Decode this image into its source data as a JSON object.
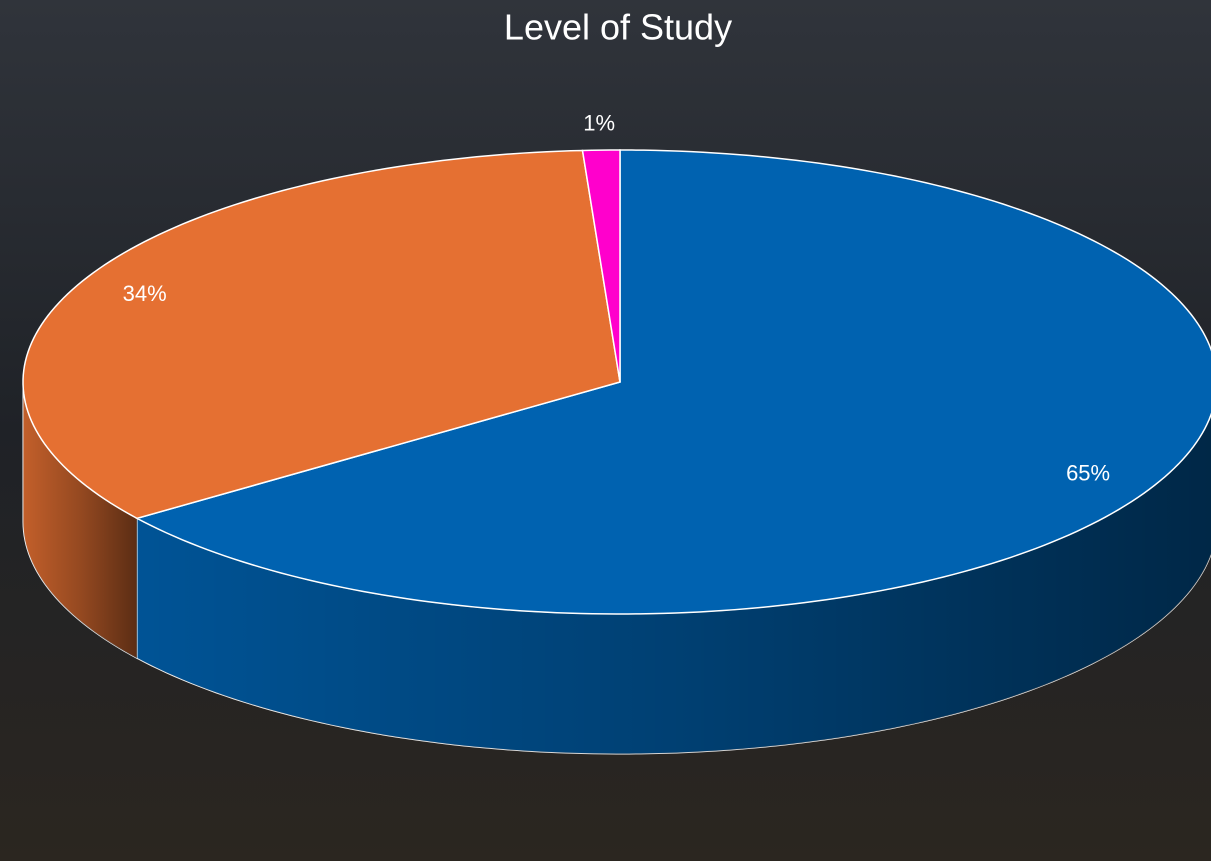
{
  "chart_data": {
    "type": "pie",
    "title": "Level of Study",
    "values": [
      65,
      34,
      1
    ],
    "value_labels": [
      "65%",
      "34%",
      "1%"
    ],
    "colors": [
      "#0062b0",
      "#e57032",
      "#ff00cc"
    ]
  }
}
